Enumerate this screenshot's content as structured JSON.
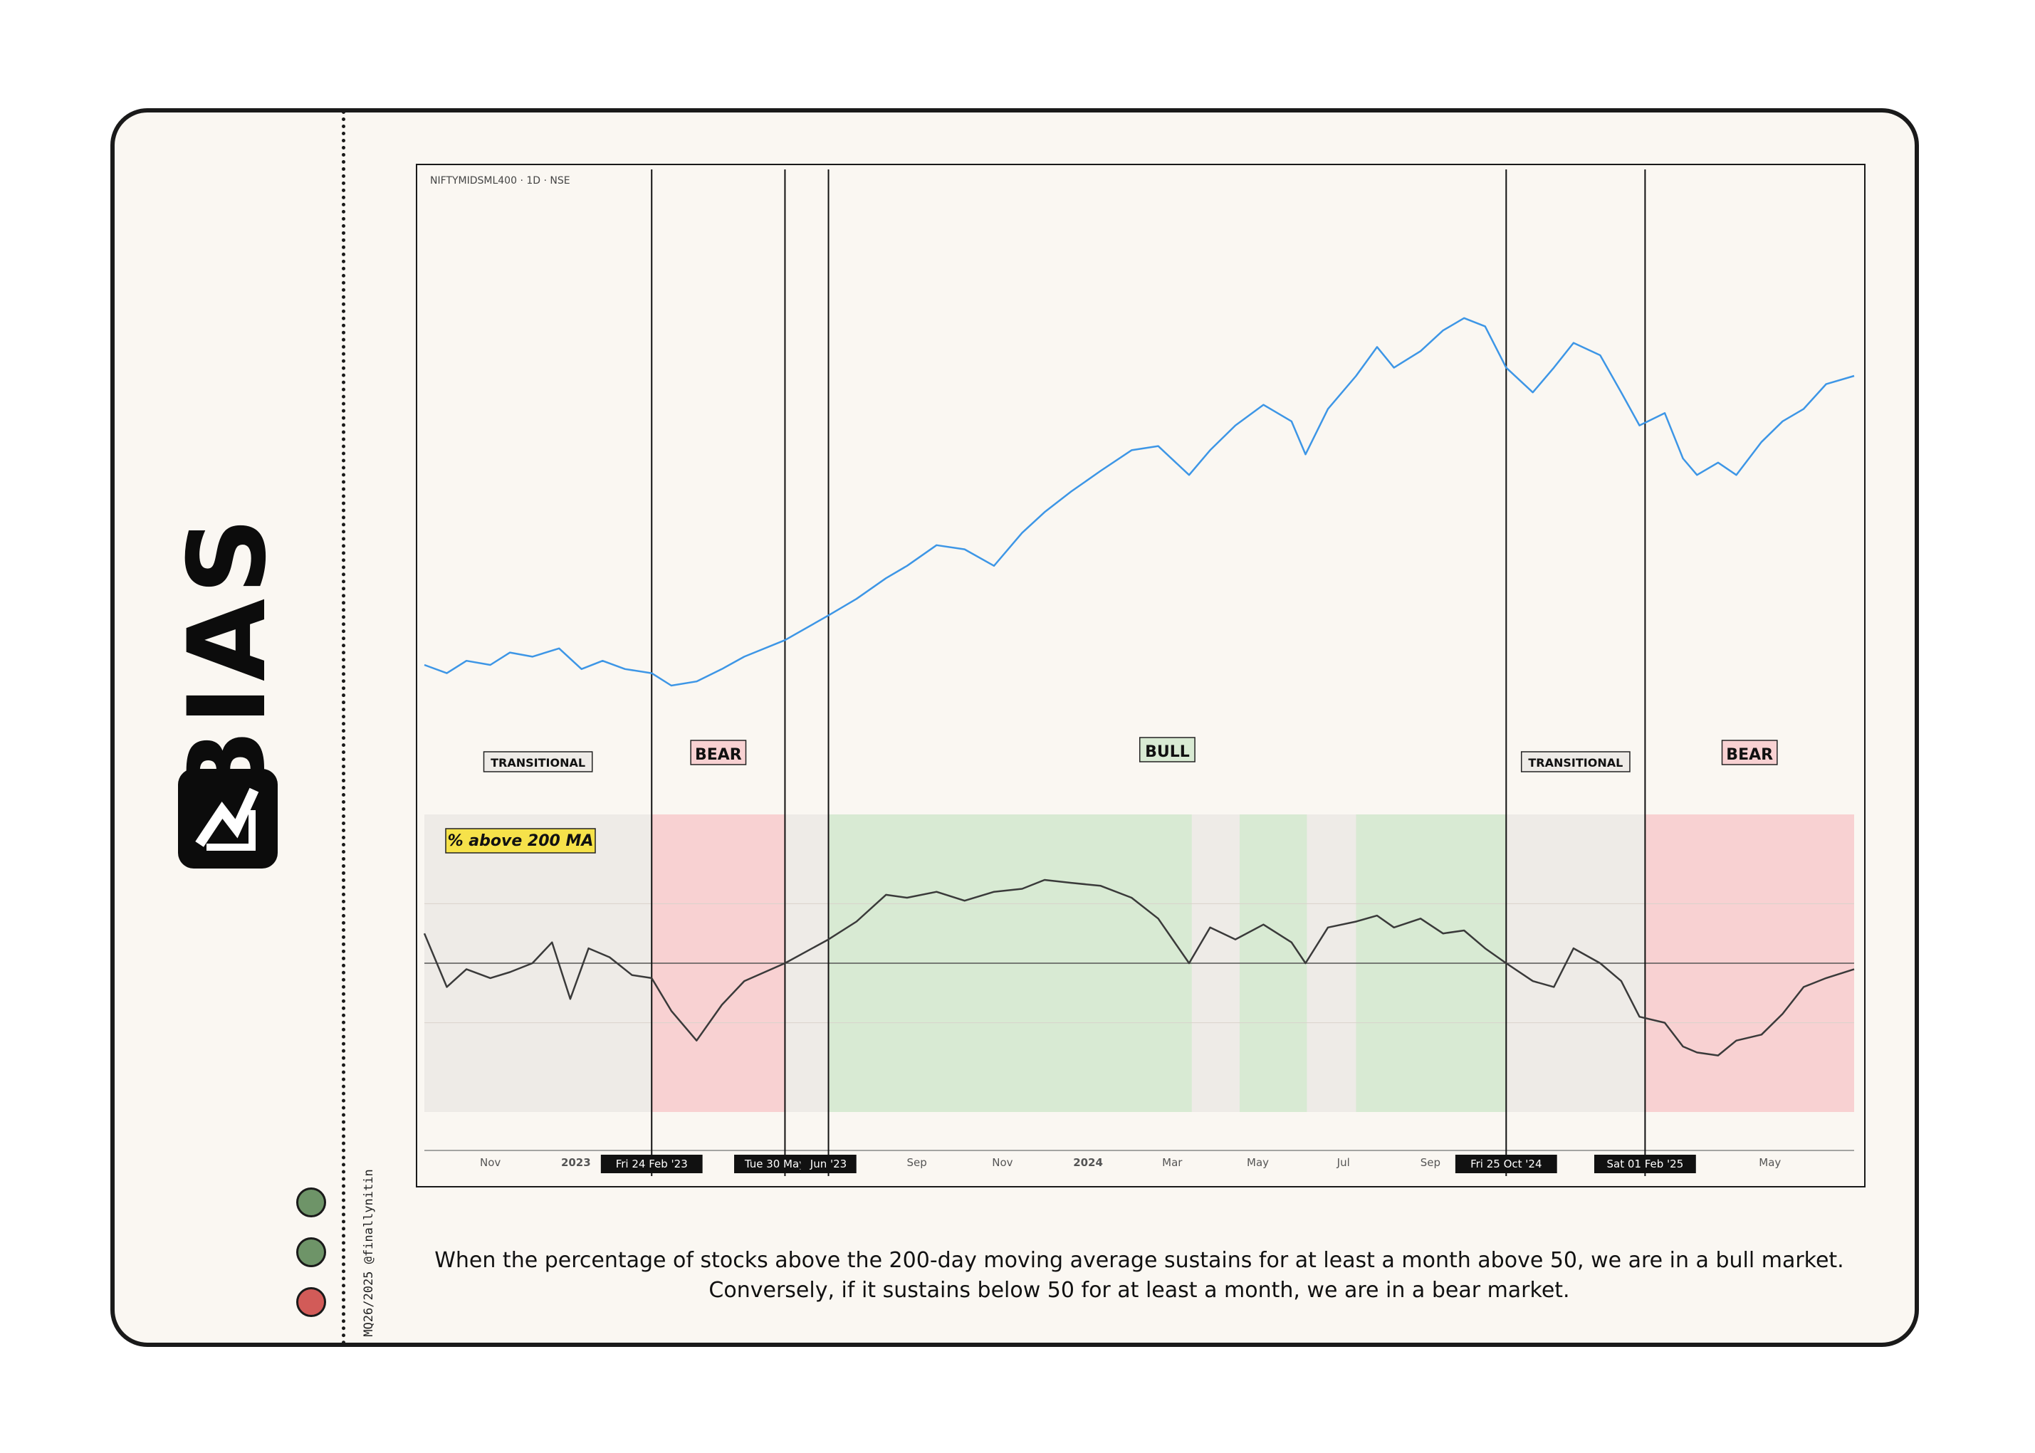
{
  "brand": {
    "name": "BIAS",
    "credit": "MQ26/2025 @finallynitin"
  },
  "colors": {
    "bull": "#d8ead3",
    "bear": "#f8d1d2",
    "transitional": "#eeebe7",
    "price_line": "#3d96e6",
    "breadth_line": "#3a3a3a",
    "dot_green": "#6e9468",
    "dot_red": "#d25b58"
  },
  "caption": "When the percentage of stocks above the 200-day moving average sustains for at least a month above 50, we are in a bull market. Conversely, if it sustains below 50 for at least a month, we are in a bear market.",
  "chart_data": {
    "type": "line",
    "symbol": "NIFTYMIDSML400 · 1D · NSE",
    "indicator_label": "% above 200 MA",
    "x_axis": {
      "ticks": [
        {
          "label": "Nov",
          "date": "2022-11-01"
        },
        {
          "label": "2023",
          "date": "2023-01-01"
        },
        {
          "label": "Sep",
          "date": "2023-09-01"
        },
        {
          "label": "Nov",
          "date": "2023-11-01"
        },
        {
          "label": "2024",
          "date": "2024-01-01"
        },
        {
          "label": "Mar",
          "date": "2024-03-01"
        },
        {
          "label": "May",
          "date": "2024-05-01"
        },
        {
          "label": "Jul",
          "date": "2024-07-01"
        },
        {
          "label": "Sep",
          "date": "2024-09-01"
        },
        {
          "label": "May",
          "date": "2025-05-01"
        }
      ],
      "range": [
        "2022-09-15",
        "2025-06-30"
      ]
    },
    "markers": [
      {
        "date": "2023-02-24",
        "label": "Fri 24 Feb '23"
      },
      {
        "date": "2023-05-30",
        "label": "Tue 30 May '23"
      },
      {
        "date": "2023-06-30",
        "label": "Jun '23"
      },
      {
        "date": "2024-10-25",
        "label": "Fri 25 Oct '24"
      },
      {
        "date": "2025-02-01",
        "label": "Sat 01 Feb '25"
      }
    ],
    "regimes": [
      {
        "label": "TRANSITIONAL",
        "from": "2022-09-15",
        "to": "2023-02-24",
        "kind": "transitional"
      },
      {
        "label": "BEAR",
        "from": "2023-02-24",
        "to": "2023-05-30",
        "kind": "bear"
      },
      {
        "label": "BULL",
        "from": "2023-06-30",
        "to": "2024-10-25",
        "kind": "bull"
      },
      {
        "label": "TRANSITIONAL",
        "from": "2024-10-25",
        "to": "2025-02-01",
        "kind": "transitional"
      },
      {
        "label": "BEAR",
        "from": "2025-02-01",
        "to": "2025-06-30",
        "kind": "bear"
      }
    ],
    "shaded_bands": [
      {
        "from": "2022-09-15",
        "to": "2023-02-24",
        "kind": "transitional"
      },
      {
        "from": "2023-02-24",
        "to": "2023-05-30",
        "kind": "bear"
      },
      {
        "from": "2023-05-30",
        "to": "2023-06-30",
        "kind": "transitional"
      },
      {
        "from": "2023-06-30",
        "to": "2024-03-15",
        "kind": "bull"
      },
      {
        "from": "2024-03-15",
        "to": "2024-04-18",
        "kind": "transitional"
      },
      {
        "from": "2024-04-18",
        "to": "2024-06-05",
        "kind": "bull"
      },
      {
        "from": "2024-06-05",
        "to": "2024-07-10",
        "kind": "transitional"
      },
      {
        "from": "2024-07-10",
        "to": "2024-10-25",
        "kind": "bull"
      },
      {
        "from": "2024-10-25",
        "to": "2025-02-01",
        "kind": "transitional"
      },
      {
        "from": "2025-02-01",
        "to": "2025-06-30",
        "kind": "bear"
      }
    ],
    "price_series": {
      "dates": [
        "2022-09-15",
        "2022-10-01",
        "2022-10-15",
        "2022-11-01",
        "2022-11-15",
        "2022-12-01",
        "2022-12-20",
        "2023-01-05",
        "2023-01-20",
        "2023-02-05",
        "2023-02-24",
        "2023-03-10",
        "2023-03-28",
        "2023-04-15",
        "2023-05-01",
        "2023-05-30",
        "2023-06-30",
        "2023-07-20",
        "2023-08-10",
        "2023-08-25",
        "2023-09-15",
        "2023-10-05",
        "2023-10-26",
        "2023-11-15",
        "2023-12-01",
        "2023-12-20",
        "2024-01-10",
        "2024-02-01",
        "2024-02-20",
        "2024-03-13",
        "2024-03-28",
        "2024-04-15",
        "2024-05-05",
        "2024-05-25",
        "2024-06-04",
        "2024-06-20",
        "2024-07-10",
        "2024-07-25",
        "2024-08-06",
        "2024-08-25",
        "2024-09-10",
        "2024-09-25",
        "2024-10-10",
        "2024-10-25",
        "2024-11-13",
        "2024-11-28",
        "2024-12-12",
        "2024-12-31",
        "2025-01-15",
        "2025-01-28",
        "2025-02-15",
        "2025-02-28",
        "2025-03-10",
        "2025-03-25",
        "2025-04-07",
        "2025-04-25",
        "2025-05-10",
        "2025-05-25",
        "2025-06-10",
        "2025-06-30"
      ],
      "values": [
        100,
        98,
        101,
        100,
        103,
        102,
        104,
        99,
        101,
        99,
        98,
        95,
        96,
        99,
        102,
        106,
        112,
        116,
        121,
        124,
        129,
        128,
        124,
        132,
        137,
        142,
        147,
        152,
        153,
        146,
        152,
        158,
        163,
        159,
        151,
        162,
        170,
        177,
        172,
        176,
        181,
        184,
        182,
        172,
        166,
        172,
        178,
        175,
        166,
        158,
        161,
        150,
        146,
        149,
        146,
        154,
        159,
        162,
        168,
        170
      ]
    },
    "breadth_series": {
      "dates": [
        "2022-09-15",
        "2022-10-01",
        "2022-10-15",
        "2022-11-01",
        "2022-11-15",
        "2022-12-01",
        "2022-12-15",
        "2022-12-28",
        "2023-01-10",
        "2023-01-25",
        "2023-02-10",
        "2023-02-24",
        "2023-03-10",
        "2023-03-28",
        "2023-04-15",
        "2023-05-01",
        "2023-05-30",
        "2023-06-30",
        "2023-07-20",
        "2023-08-10",
        "2023-08-25",
        "2023-09-15",
        "2023-10-05",
        "2023-10-26",
        "2023-11-15",
        "2023-12-01",
        "2023-12-20",
        "2024-01-10",
        "2024-02-01",
        "2024-02-20",
        "2024-03-13",
        "2024-03-28",
        "2024-04-15",
        "2024-05-05",
        "2024-05-25",
        "2024-06-04",
        "2024-06-20",
        "2024-07-10",
        "2024-07-25",
        "2024-08-06",
        "2024-08-25",
        "2024-09-10",
        "2024-09-25",
        "2024-10-10",
        "2024-10-25",
        "2024-11-13",
        "2024-11-28",
        "2024-12-12",
        "2024-12-31",
        "2025-01-15",
        "2025-01-28",
        "2025-02-15",
        "2025-02-28",
        "2025-03-10",
        "2025-03-25",
        "2025-04-07",
        "2025-04-25",
        "2025-05-10",
        "2025-05-25",
        "2025-06-10",
        "2025-06-30"
      ],
      "values": [
        60,
        42,
        48,
        45,
        47,
        50,
        57,
        38,
        55,
        52,
        46,
        45,
        34,
        24,
        36,
        44,
        50,
        58,
        64,
        73,
        72,
        74,
        71,
        74,
        75,
        78,
        77,
        76,
        72,
        65,
        50,
        62,
        58,
        63,
        57,
        50,
        62,
        64,
        66,
        62,
        65,
        60,
        61,
        55,
        50,
        44,
        42,
        55,
        50,
        44,
        32,
        30,
        22,
        20,
        19,
        24,
        26,
        33,
        42,
        45,
        48
      ]
    },
    "breadth_reference": 50
  }
}
